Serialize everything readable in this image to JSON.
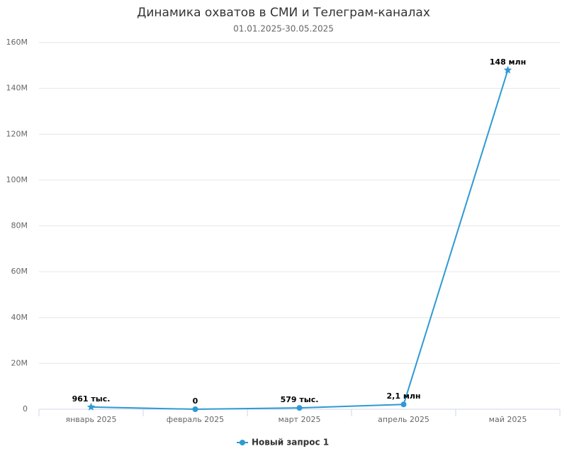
{
  "chart_data": {
    "type": "line",
    "title": "Динамика охватов в СМИ и Телеграм-каналах",
    "subtitle": "01.01.2025-30.05.2025",
    "categories": [
      "январь 2025",
      "февраль 2025",
      "март 2025",
      "апрель 2025",
      "май 2025"
    ],
    "series": [
      {
        "name": "Новый запрос 1",
        "color": "#2e9ad3",
        "values": [
          961000,
          0,
          579000,
          2100000,
          148000000
        ],
        "value_labels": [
          "961 тыс.",
          "0",
          "579 тыс.",
          "2,1 млн",
          "148 млн"
        ],
        "markers": [
          "star",
          "circle",
          "circle",
          "circle",
          "star"
        ]
      }
    ],
    "ylim": [
      0,
      160000000
    ],
    "yticks": [
      0,
      {
        "value": 20000000,
        "label": "20M"
      },
      {
        "value": 40000000,
        "label": "40M"
      },
      {
        "value": 60000000,
        "label": "60M"
      },
      {
        "value": 80000000,
        "label": "80M"
      },
      {
        "value": 100000000,
        "label": "100M"
      },
      {
        "value": 120000000,
        "label": "120M"
      },
      {
        "value": 140000000,
        "label": "140M"
      },
      {
        "value": 160000000,
        "label": "160M"
      }
    ],
    "grid": true,
    "legend": "bottom"
  }
}
